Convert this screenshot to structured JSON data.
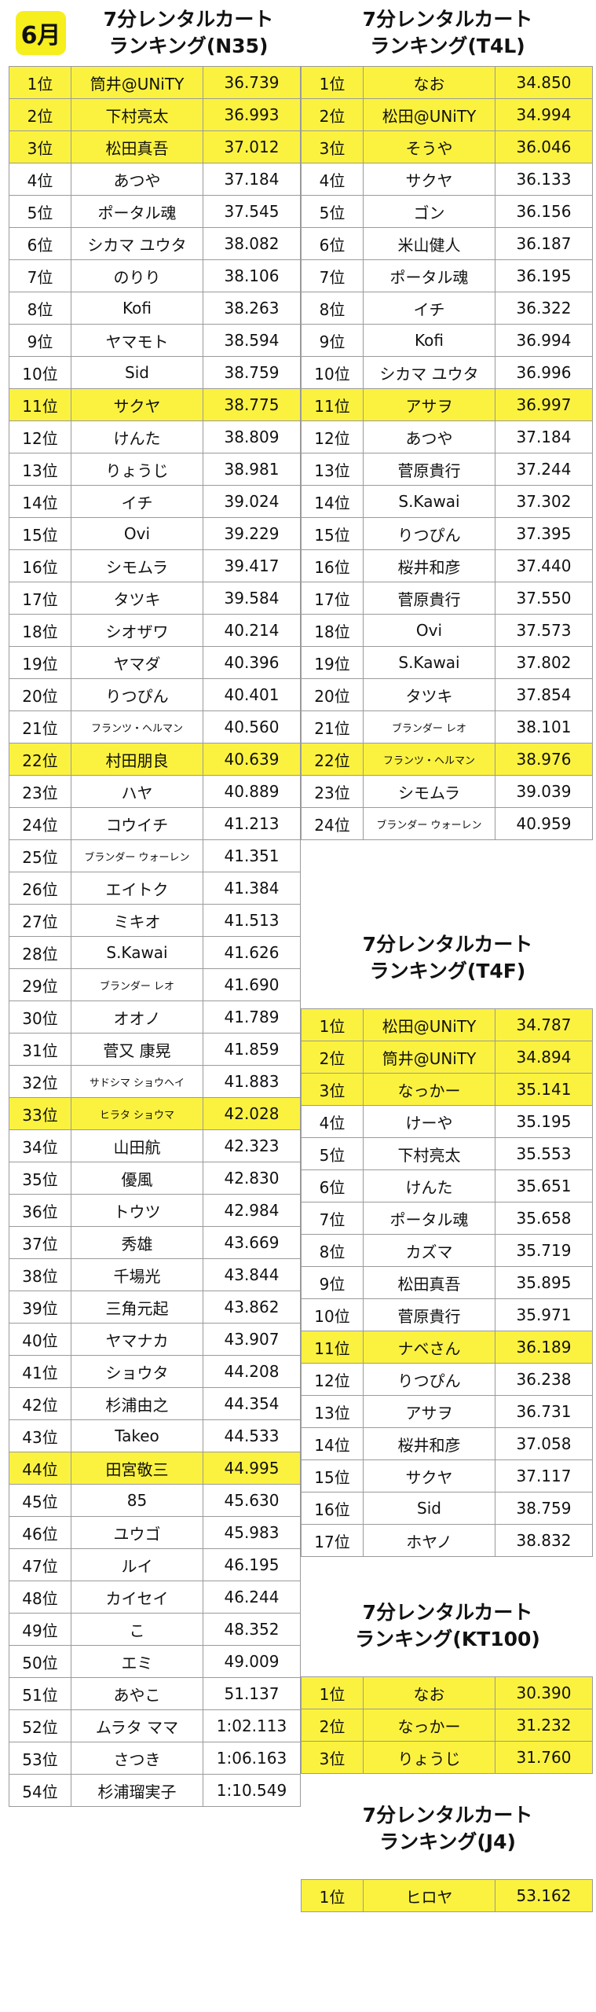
{
  "month": "6月",
  "titles": {
    "n35": [
      "7分レンタルカート",
      "ランキング(N35)"
    ],
    "t4l": [
      "7分レンタルカート",
      "ランキング(T4L)"
    ],
    "t4f": [
      "7分レンタルカート",
      "ランキング(T4F)"
    ],
    "kt100": [
      "7分レンタルカート",
      "ランキング(KT100)"
    ],
    "j4": [
      "7分レンタルカート",
      "ランキング(J4)"
    ]
  },
  "rankings": {
    "n35": [
      {
        "pos": "1位",
        "name": "筒井@UNiTY",
        "time": "36.739",
        "hl": true
      },
      {
        "pos": "2位",
        "name": "下村亮太",
        "time": "36.993",
        "hl": true
      },
      {
        "pos": "3位",
        "name": "松田真吾",
        "time": "37.012",
        "hl": true
      },
      {
        "pos": "4位",
        "name": "あつや",
        "time": "37.184"
      },
      {
        "pos": "5位",
        "name": "ポータル魂",
        "time": "37.545"
      },
      {
        "pos": "6位",
        "name": "シカマ ユウタ",
        "time": "38.082"
      },
      {
        "pos": "7位",
        "name": "のりり",
        "time": "38.106"
      },
      {
        "pos": "8位",
        "name": "Kofi",
        "time": "38.263"
      },
      {
        "pos": "9位",
        "name": "ヤマモト",
        "time": "38.594"
      },
      {
        "pos": "10位",
        "name": "Sid",
        "time": "38.759"
      },
      {
        "pos": "11位",
        "name": "サクヤ",
        "time": "38.775",
        "hl": true
      },
      {
        "pos": "12位",
        "name": "けんた",
        "time": "38.809"
      },
      {
        "pos": "13位",
        "name": "りょうじ",
        "time": "38.981"
      },
      {
        "pos": "14位",
        "name": "イチ",
        "time": "39.024"
      },
      {
        "pos": "15位",
        "name": "Ovi",
        "time": "39.229"
      },
      {
        "pos": "16位",
        "name": "シモムラ",
        "time": "39.417"
      },
      {
        "pos": "17位",
        "name": "タツキ",
        "time": "39.584"
      },
      {
        "pos": "18位",
        "name": "シオザワ",
        "time": "40.214"
      },
      {
        "pos": "19位",
        "name": "ヤマダ",
        "time": "40.396"
      },
      {
        "pos": "20位",
        "name": "りつぴん",
        "time": "40.401"
      },
      {
        "pos": "21位",
        "name": "フランツ・ヘルマン",
        "time": "40.560",
        "small": true
      },
      {
        "pos": "22位",
        "name": "村田朋良",
        "time": "40.639",
        "hl": true
      },
      {
        "pos": "23位",
        "name": "ハヤ",
        "time": "40.889"
      },
      {
        "pos": "24位",
        "name": "コウイチ",
        "time": "41.213"
      },
      {
        "pos": "25位",
        "name": "ブランダー ウォーレン",
        "time": "41.351",
        "small": true
      },
      {
        "pos": "26位",
        "name": "エイトク",
        "time": "41.384"
      },
      {
        "pos": "27位",
        "name": "ミキオ",
        "time": "41.513"
      },
      {
        "pos": "28位",
        "name": "S.Kawai",
        "time": "41.626"
      },
      {
        "pos": "29位",
        "name": "ブランダー レオ",
        "time": "41.690",
        "small": true
      },
      {
        "pos": "30位",
        "name": "オオノ",
        "time": "41.789"
      },
      {
        "pos": "31位",
        "name": "菅又 康晃",
        "time": "41.859"
      },
      {
        "pos": "32位",
        "name": "サドシマ ショウヘイ",
        "time": "41.883",
        "small": true
      },
      {
        "pos": "33位",
        "name": "ヒラタ ショウマ",
        "time": "42.028",
        "hl": true,
        "small": true
      },
      {
        "pos": "34位",
        "name": "山田航",
        "time": "42.323"
      },
      {
        "pos": "35位",
        "name": "優風",
        "time": "42.830"
      },
      {
        "pos": "36位",
        "name": "トウツ",
        "time": "42.984"
      },
      {
        "pos": "37位",
        "name": "秀雄",
        "time": "43.669"
      },
      {
        "pos": "38位",
        "name": "千場光",
        "time": "43.844"
      },
      {
        "pos": "39位",
        "name": "三角元起",
        "time": "43.862"
      },
      {
        "pos": "40位",
        "name": "ヤマナカ",
        "time": "43.907"
      },
      {
        "pos": "41位",
        "name": "ショウタ",
        "time": "44.208"
      },
      {
        "pos": "42位",
        "name": "杉浦由之",
        "time": "44.354"
      },
      {
        "pos": "43位",
        "name": "Takeo",
        "time": "44.533"
      },
      {
        "pos": "44位",
        "name": "田宮敬三",
        "time": "44.995",
        "hl": true
      },
      {
        "pos": "45位",
        "name": "85",
        "time": "45.630"
      },
      {
        "pos": "46位",
        "name": "ユウゴ",
        "time": "45.983"
      },
      {
        "pos": "47位",
        "name": "ルイ",
        "time": "46.195"
      },
      {
        "pos": "48位",
        "name": "カイセイ",
        "time": "46.244"
      },
      {
        "pos": "49位",
        "name": "こ",
        "time": "48.352"
      },
      {
        "pos": "50位",
        "name": "エミ",
        "time": "49.009"
      },
      {
        "pos": "51位",
        "name": "あやこ",
        "time": "51.137"
      },
      {
        "pos": "52位",
        "name": "ムラタ ママ",
        "time": "1:02.113"
      },
      {
        "pos": "53位",
        "name": "さつき",
        "time": "1:06.163"
      },
      {
        "pos": "54位",
        "name": "杉浦瑠実子",
        "time": "1:10.549"
      }
    ],
    "t4l": [
      {
        "pos": "1位",
        "name": "なお",
        "time": "34.850",
        "hl": true
      },
      {
        "pos": "2位",
        "name": "松田@UNiTY",
        "time": "34.994",
        "hl": true
      },
      {
        "pos": "3位",
        "name": "そうや",
        "time": "36.046",
        "hl": true
      },
      {
        "pos": "4位",
        "name": "サクヤ",
        "time": "36.133"
      },
      {
        "pos": "5位",
        "name": "ゴン",
        "time": "36.156"
      },
      {
        "pos": "6位",
        "name": "米山健人",
        "time": "36.187"
      },
      {
        "pos": "7位",
        "name": "ポータル魂",
        "time": "36.195"
      },
      {
        "pos": "8位",
        "name": "イチ",
        "time": "36.322"
      },
      {
        "pos": "9位",
        "name": "Kofi",
        "time": "36.994"
      },
      {
        "pos": "10位",
        "name": "シカマ ユウタ",
        "time": "36.996"
      },
      {
        "pos": "11位",
        "name": "アサヲ",
        "time": "36.997",
        "hl": true
      },
      {
        "pos": "12位",
        "name": "あつや",
        "time": "37.184"
      },
      {
        "pos": "13位",
        "name": "菅原貴行",
        "time": "37.244"
      },
      {
        "pos": "14位",
        "name": "S.Kawai",
        "time": "37.302"
      },
      {
        "pos": "15位",
        "name": "りつぴん",
        "time": "37.395"
      },
      {
        "pos": "16位",
        "name": "桜井和彦",
        "time": "37.440"
      },
      {
        "pos": "17位",
        "name": "菅原貴行",
        "time": "37.550"
      },
      {
        "pos": "18位",
        "name": "Ovi",
        "time": "37.573"
      },
      {
        "pos": "19位",
        "name": "S.Kawai",
        "time": "37.802"
      },
      {
        "pos": "20位",
        "name": "タツキ",
        "time": "37.854"
      },
      {
        "pos": "21位",
        "name": "ブランダー レオ",
        "time": "38.101",
        "small": true
      },
      {
        "pos": "22位",
        "name": "フランツ・ヘルマン",
        "time": "38.976",
        "hl": true,
        "small": true
      },
      {
        "pos": "23位",
        "name": "シモムラ",
        "time": "39.039"
      },
      {
        "pos": "24位",
        "name": "ブランダー ウォーレン",
        "time": "40.959",
        "small": true
      }
    ],
    "t4f": [
      {
        "pos": "1位",
        "name": "松田@UNiTY",
        "time": "34.787",
        "hl": true
      },
      {
        "pos": "2位",
        "name": "筒井@UNiTY",
        "time": "34.894",
        "hl": true
      },
      {
        "pos": "3位",
        "name": "なっかー",
        "time": "35.141",
        "hl": true
      },
      {
        "pos": "4位",
        "name": "けーや",
        "time": "35.195"
      },
      {
        "pos": "5位",
        "name": "下村亮太",
        "time": "35.553"
      },
      {
        "pos": "6位",
        "name": "けんた",
        "time": "35.651"
      },
      {
        "pos": "7位",
        "name": "ポータル魂",
        "time": "35.658"
      },
      {
        "pos": "8位",
        "name": "カズマ",
        "time": "35.719"
      },
      {
        "pos": "9位",
        "name": "松田真吾",
        "time": "35.895"
      },
      {
        "pos": "10位",
        "name": "菅原貴行",
        "time": "35.971"
      },
      {
        "pos": "11位",
        "name": "ナベさん",
        "time": "36.189",
        "hl": true
      },
      {
        "pos": "12位",
        "name": "りつぴん",
        "time": "36.238"
      },
      {
        "pos": "13位",
        "name": "アサヲ",
        "time": "36.731"
      },
      {
        "pos": "14位",
        "name": "桜井和彦",
        "time": "37.058"
      },
      {
        "pos": "15位",
        "name": "サクヤ",
        "time": "37.117"
      },
      {
        "pos": "16位",
        "name": "Sid",
        "time": "38.759"
      },
      {
        "pos": "17位",
        "name": "ホヤノ",
        "time": "38.832"
      }
    ],
    "kt100": [
      {
        "pos": "1位",
        "name": "なお",
        "time": "30.390",
        "hl": true
      },
      {
        "pos": "2位",
        "name": "なっかー",
        "time": "31.232",
        "hl": true
      },
      {
        "pos": "3位",
        "name": "りょうじ",
        "time": "31.760",
        "hl": true
      }
    ],
    "j4": [
      {
        "pos": "1位",
        "name": "ヒロヤ",
        "time": "53.162",
        "hl": true
      }
    ]
  }
}
